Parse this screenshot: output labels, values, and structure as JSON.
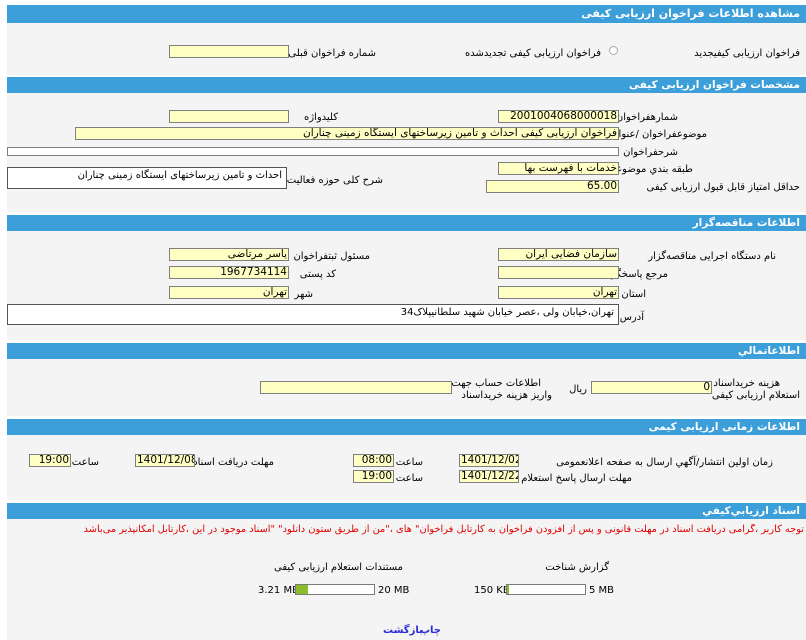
{
  "title": "مشاهده اطلاعات فراخوان ارزیابی کیفی",
  "top": {
    "new_label": "فراخوان ارزیابی کیفیجدید",
    "renewed_label": "فراخوان ارزیابی کیفی تجدیدشده",
    "prev_number_label": "شماره فراخوان قبلی",
    "prev_number_value": ""
  },
  "spec": {
    "header": "مشخصات فراخوان ارزیابی کیفی",
    "number_label": "شمارهفراخوان",
    "number_value": "2001004068000018",
    "keyword_label": "کلیدواژه",
    "keyword_value": "",
    "subject_label": "موضوعفراخوان /عنوان",
    "subject_value": "فراخوان ارزیابی کیفی احداث و تامین زیرساختهای ایستگاه زمینی چناران",
    "desc_label": "شرحفراخوان",
    "desc_value": "",
    "category_label": "طبقه بندي موضوعي",
    "category_value": "خدمات با فهرست بها",
    "activity_label": "شرح کلی حوزه فعالیت",
    "activity_value": "احداث و تامین زیرساختهای ایستگاه زمینی چناران",
    "min_score_label": "حداقل امتیاز قابل قبول ارزیابی کیفی",
    "min_score_value": "65.00"
  },
  "org": {
    "header": "اطلاعات مناقصه‌گزار",
    "org_label": "نام دستگاه اجرایی مناقصه‌گزار",
    "org_value": "سازمان فضایی ایران",
    "registrar_label": "مسئول ثبتفراخوان",
    "registrar_value": "یاسر مرتاضی",
    "reference_label": "مرجع پاسخگویی",
    "reference_value": "",
    "postal_label": "کد پستی",
    "postal_value": "1967734114",
    "province_label": "استان",
    "province_value": "تهران",
    "city_label": "شهر",
    "city_value": "تهران",
    "address_label": "آدرس",
    "address_value": "تهران،خیابان ولی ،عصر خیابان شهید سلطانیپلاک34"
  },
  "finance": {
    "header": "اطلاعاتمالي",
    "fee_label_1": "هزینه خریداسناد",
    "fee_label_2": "استعلام ارزیابی کیفی",
    "fee_value": "0",
    "currency": "ریال",
    "account_label_1": "اطلاعات حساب جهت",
    "account_label_2": "واریز هزینه خریداسناد",
    "account_value": ""
  },
  "timing": {
    "header": "اطلاعات زمانی ارزیابی کیمی",
    "publish_label": "زمان اولین انتشار/آگهي ارسال به صفحه اعلانعمومی",
    "publish_date": "1401/12/02",
    "publish_time": "08:00",
    "receive_label": "مهلت دریافت اسناد",
    "receive_date": "1401/12/08",
    "receive_time": "19:00",
    "answer_label": "مهلت ارسال پاسخ استعلام",
    "answer_date": "1401/12/22",
    "answer_time": "19:00",
    "time_label": "ساعت"
  },
  "docs": {
    "header": "اسناد ارزيابي‌کيفي",
    "notice": "توجه کاربر ،گرامی دریافت اسناد در مهلت قانونی و پس از افزودن فراخوان به کارتابل فراخوان\" های ،\"من از طریق ستون دانلود\" \"اسناد موجود در این ،کارتابل امکانپذیر می‌باشد",
    "report_title": "گزارش شناخت",
    "report_size": "150 KB",
    "report_max": "5 MB",
    "report_fill": 0.03,
    "inquiry_title": "مستندات استعلام ارزیابی کیفی",
    "inquiry_size": "3.21 MB",
    "inquiry_max": "20 MB",
    "inquiry_fill": 0.16
  },
  "footer": {
    "print": "چاپ",
    "back": "بازگشت"
  },
  "colors": {
    "header_bg": "#3d9fd9",
    "field_bg": "#ffffc4",
    "notice": "#e00000",
    "link": "#2b2bd6",
    "progress": "#8cbc2c"
  }
}
